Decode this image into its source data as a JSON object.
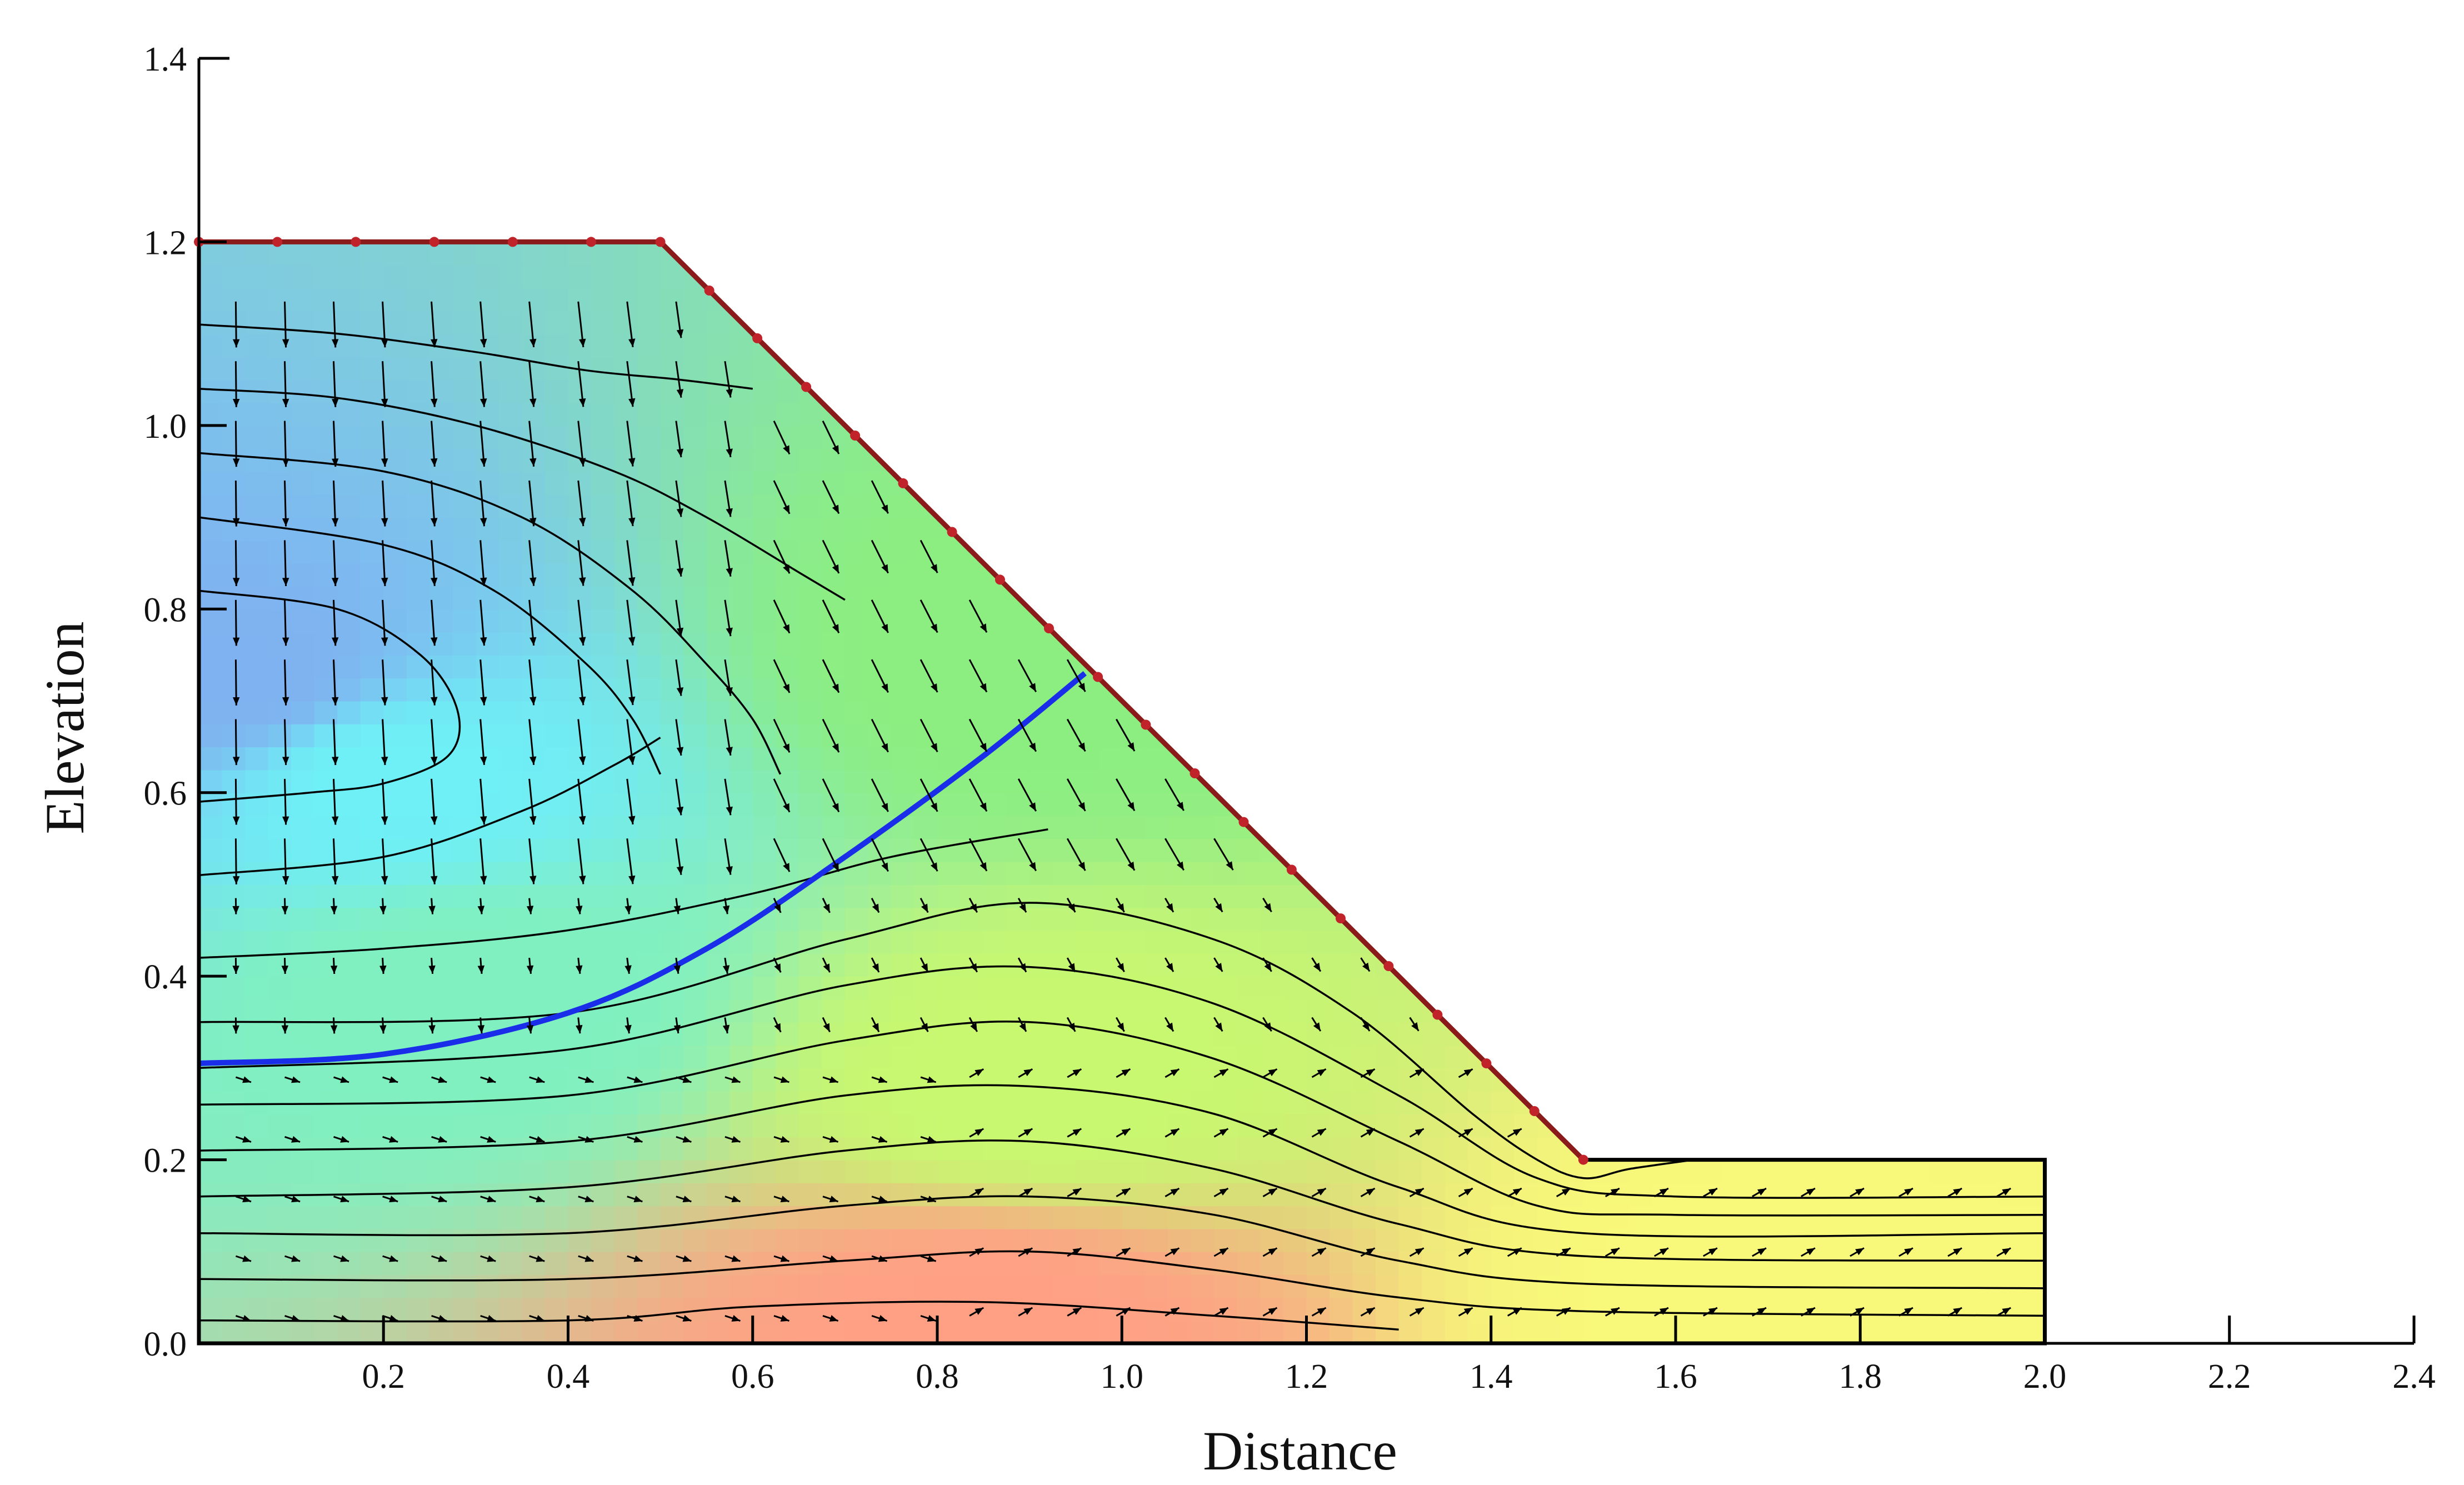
{
  "chart_data": {
    "type": "contour",
    "xlabel": "Distance",
    "ylabel": "Elevation",
    "xlim": [
      0.0,
      2.4
    ],
    "ylim": [
      0.0,
      1.4
    ],
    "x_ticks": [
      "0.2",
      "0.4",
      "0.6",
      "0.8",
      "1.0",
      "1.2",
      "1.4",
      "1.6",
      "1.8",
      "2.0",
      "2.2",
      "2.4"
    ],
    "y_ticks": [
      "0.0",
      "0.2",
      "0.4",
      "0.6",
      "0.8",
      "1.0",
      "1.2",
      "1.4"
    ],
    "domain_outline": [
      [
        0,
        0
      ],
      [
        2.0,
        0
      ],
      [
        2.0,
        0.2
      ],
      [
        1.5,
        0.2
      ],
      [
        0.5,
        1.2
      ],
      [
        0,
        1.2
      ]
    ],
    "seepage_face_points": [
      [
        0,
        1.2
      ],
      [
        0.085,
        1.2
      ],
      [
        0.17,
        1.2
      ],
      [
        0.255,
        1.2
      ],
      [
        0.34,
        1.2
      ],
      [
        0.425,
        1.2
      ],
      [
        0.5,
        1.2
      ],
      [
        0.553,
        1.147
      ],
      [
        0.605,
        1.095
      ],
      [
        0.658,
        1.042
      ],
      [
        0.711,
        0.989
      ],
      [
        0.763,
        0.937
      ],
      [
        0.816,
        0.884
      ],
      [
        0.868,
        0.832
      ],
      [
        0.921,
        0.779
      ],
      [
        0.974,
        0.726
      ],
      [
        1.026,
        0.674
      ],
      [
        1.079,
        0.621
      ],
      [
        1.132,
        0.568
      ],
      [
        1.184,
        0.516
      ],
      [
        1.237,
        0.463
      ],
      [
        1.289,
        0.411
      ],
      [
        1.342,
        0.358
      ],
      [
        1.395,
        0.305
      ],
      [
        1.447,
        0.253
      ],
      [
        1.5,
        0.2
      ]
    ],
    "phreatic_line": [
      [
        0.0,
        0.305
      ],
      [
        0.2,
        0.315
      ],
      [
        0.4,
        0.36
      ],
      [
        0.55,
        0.43
      ],
      [
        0.7,
        0.53
      ],
      [
        0.85,
        0.64
      ],
      [
        0.96,
        0.73
      ]
    ],
    "contour_levels": [
      [
        [
          0.0,
          1.11
        ],
        [
          0.15,
          1.1
        ],
        [
          0.3,
          1.08
        ],
        [
          0.42,
          1.06
        ],
        [
          0.52,
          1.05
        ],
        [
          0.6,
          1.04
        ]
      ],
      [
        [
          0.0,
          1.04
        ],
        [
          0.15,
          1.03
        ],
        [
          0.3,
          1.0
        ],
        [
          0.45,
          0.95
        ],
        [
          0.55,
          0.9
        ],
        [
          0.65,
          0.84
        ],
        [
          0.7,
          0.81
        ]
      ],
      [
        [
          0.0,
          0.97
        ],
        [
          0.2,
          0.95
        ],
        [
          0.35,
          0.9
        ],
        [
          0.47,
          0.82
        ],
        [
          0.55,
          0.74
        ],
        [
          0.6,
          0.68
        ],
        [
          0.63,
          0.62
        ]
      ],
      [
        [
          0.0,
          0.9
        ],
        [
          0.2,
          0.87
        ],
        [
          0.32,
          0.82
        ],
        [
          0.42,
          0.74
        ],
        [
          0.47,
          0.68
        ],
        [
          0.5,
          0.62
        ]
      ],
      [
        [
          0.0,
          0.82
        ],
        [
          0.15,
          0.8
        ],
        [
          0.24,
          0.75
        ],
        [
          0.28,
          0.69
        ],
        [
          0.27,
          0.64
        ],
        [
          0.2,
          0.61
        ],
        [
          0.12,
          0.6
        ],
        [
          0.0,
          0.59
        ]
      ],
      [
        [
          0.0,
          0.51
        ],
        [
          0.2,
          0.53
        ],
        [
          0.35,
          0.58
        ],
        [
          0.45,
          0.63
        ],
        [
          0.5,
          0.66
        ]
      ],
      [
        [
          0.0,
          0.42
        ],
        [
          0.2,
          0.43
        ],
        [
          0.4,
          0.45
        ],
        [
          0.6,
          0.49
        ],
        [
          0.75,
          0.53
        ],
        [
          0.92,
          0.56
        ]
      ],
      [
        [
          0.0,
          0.35
        ],
        [
          0.4,
          0.36
        ],
        [
          0.7,
          0.44
        ],
        [
          0.9,
          0.48
        ],
        [
          1.1,
          0.44
        ],
        [
          1.25,
          0.36
        ],
        [
          1.38,
          0.25
        ],
        [
          1.45,
          0.2
        ],
        [
          1.5,
          0.18
        ],
        [
          1.55,
          0.19
        ],
        [
          1.62,
          0.2
        ]
      ],
      [
        [
          0.0,
          0.3
        ],
        [
          0.4,
          0.32
        ],
        [
          0.7,
          0.39
        ],
        [
          0.9,
          0.41
        ],
        [
          1.1,
          0.37
        ],
        [
          1.3,
          0.27
        ],
        [
          1.45,
          0.18
        ],
        [
          1.6,
          0.16
        ],
        [
          2.0,
          0.16
        ]
      ],
      [
        [
          0.0,
          0.26
        ],
        [
          0.4,
          0.27
        ],
        [
          0.7,
          0.33
        ],
        [
          0.9,
          0.35
        ],
        [
          1.1,
          0.31
        ],
        [
          1.3,
          0.22
        ],
        [
          1.45,
          0.15
        ],
        [
          1.6,
          0.14
        ],
        [
          2.0,
          0.14
        ]
      ],
      [
        [
          0.0,
          0.21
        ],
        [
          0.4,
          0.22
        ],
        [
          0.7,
          0.27
        ],
        [
          0.9,
          0.28
        ],
        [
          1.1,
          0.25
        ],
        [
          1.3,
          0.17
        ],
        [
          1.5,
          0.12
        ],
        [
          2.0,
          0.12
        ]
      ],
      [
        [
          0.0,
          0.16
        ],
        [
          0.4,
          0.17
        ],
        [
          0.7,
          0.21
        ],
        [
          0.9,
          0.22
        ],
        [
          1.1,
          0.19
        ],
        [
          1.3,
          0.13
        ],
        [
          1.5,
          0.095
        ],
        [
          2.0,
          0.09
        ]
      ],
      [
        [
          0.0,
          0.12
        ],
        [
          0.4,
          0.12
        ],
        [
          0.7,
          0.15
        ],
        [
          0.9,
          0.16
        ],
        [
          1.1,
          0.14
        ],
        [
          1.3,
          0.09
        ],
        [
          1.5,
          0.065
        ],
        [
          2.0,
          0.06
        ]
      ],
      [
        [
          0.0,
          0.07
        ],
        [
          0.4,
          0.07
        ],
        [
          0.7,
          0.09
        ],
        [
          0.9,
          0.1
        ],
        [
          1.1,
          0.08
        ],
        [
          1.3,
          0.05
        ],
        [
          1.5,
          0.035
        ],
        [
          2.0,
          0.03
        ]
      ],
      [
        [
          0.0,
          0.025
        ],
        [
          0.4,
          0.025
        ],
        [
          0.6,
          0.04
        ],
        [
          0.85,
          0.045
        ],
        [
          1.1,
          0.03
        ],
        [
          1.3,
          0.015
        ]
      ]
    ],
    "color_regions": [
      {
        "color": "#7FB2F0",
        "center": [
          0.05,
          0.72
        ]
      },
      {
        "color": "#6FF0F6",
        "center": [
          0.2,
          0.62
        ]
      },
      {
        "color": "#80F0C0",
        "center": [
          0.3,
          0.38
        ]
      },
      {
        "color": "#8CEE80",
        "center": [
          0.9,
          0.75
        ]
      },
      {
        "color": "#C8F870",
        "center": [
          0.9,
          0.28
        ]
      },
      {
        "color": "#F8F87A",
        "center": [
          1.7,
          0.05
        ]
      },
      {
        "color": "#FFA085",
        "center": [
          0.85,
          0.02
        ]
      }
    ],
    "colors": {
      "boundary": "#8B1A1A",
      "phreatic_line": "#1A2EEA",
      "contour": "#000000",
      "vector": "#000000"
    }
  }
}
